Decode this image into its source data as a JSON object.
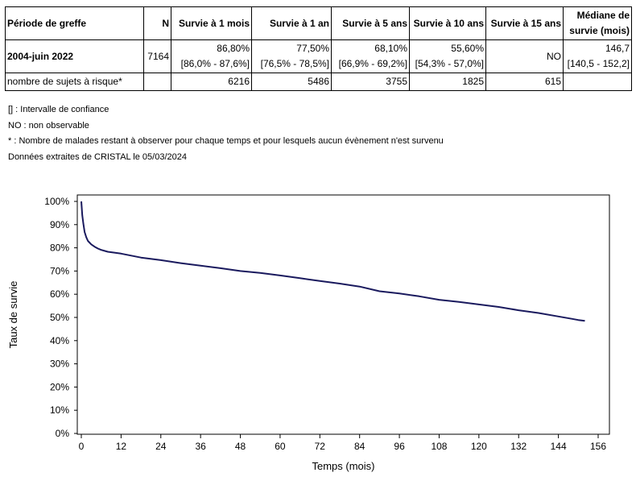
{
  "table": {
    "headers": [
      "Période de greffe",
      "N",
      "Survie à 1 mois",
      "Survie à 1 an",
      "Survie à 5 ans",
      "Survie à 10 ans",
      "Survie à 15 ans",
      "Médiane de",
      "survie (mois)"
    ],
    "row": {
      "period": "2004-juin 2022",
      "n": "7164",
      "s1m": "86,80%",
      "ci1m": "[86,0% - 87,6%]",
      "s1a": "77,50%",
      "ci1a": "[76,5% - 78,5%]",
      "s5a": "68,10%",
      "ci5a": "[66,9% - 69,2%]",
      "s10a": "55,60%",
      "ci10a": "[54,3% - 57,0%]",
      "s15a": "NO",
      "median": "146,7",
      "ci_median": "[140,5 - 152,2]"
    },
    "risk": {
      "label": "nombre de sujets à risque*",
      "values": [
        "6216",
        "5486",
        "3755",
        "1825",
        "615"
      ]
    }
  },
  "notes": [
    "[] : Intervalle de confiance",
    "NO : non observable",
    "* : Nombre de malades restant à observer pour chaque temps et pour lesquels aucun évènement n'est survenu",
    "Données extraites de CRISTAL le 05/03/2024"
  ],
  "chart_data": {
    "type": "line",
    "xlabel": "Temps (mois)",
    "ylabel": "Taux de survie",
    "xlim": [
      0,
      156
    ],
    "ylim": [
      0,
      100
    ],
    "xticks": [
      0,
      12,
      24,
      36,
      48,
      60,
      72,
      84,
      96,
      108,
      120,
      132,
      144,
      156
    ],
    "yticks": [
      0,
      10,
      20,
      30,
      40,
      50,
      60,
      70,
      80,
      90,
      100
    ],
    "ytick_labels": [
      "0%",
      "10%",
      "20%",
      "30%",
      "40%",
      "50%",
      "60%",
      "70%",
      "80%",
      "90%",
      "100%"
    ],
    "grid": false,
    "line_color": "#1a1a5e",
    "series": [
      {
        "x": [
          0,
          0.3,
          0.6,
          1,
          1.5,
          2,
          3,
          4,
          5,
          6,
          8,
          10,
          12,
          18,
          24,
          30,
          36,
          42,
          48,
          54,
          60,
          66,
          72,
          78,
          84,
          90,
          96,
          102,
          108,
          114,
          120,
          126,
          132,
          138,
          144,
          148,
          150,
          152
        ],
        "y": [
          100,
          94,
          90.5,
          86.8,
          84.5,
          83,
          81.5,
          80.5,
          79.7,
          79.1,
          78.3,
          77.9,
          77.5,
          75.8,
          74.7,
          73.4,
          72.3,
          71.2,
          70.0,
          69.2,
          68.1,
          66.9,
          65.7,
          64.6,
          63.3,
          61.3,
          60.3,
          59.1,
          57.6,
          56.7,
          55.6,
          54.5,
          53.1,
          51.9,
          50.4,
          49.4,
          48.9,
          48.5
        ]
      }
    ]
  }
}
